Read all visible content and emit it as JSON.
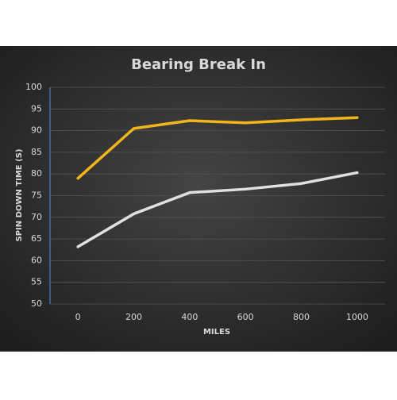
{
  "chart_data": {
    "type": "line",
    "title": "Bearing Break In",
    "x_label": "MILES",
    "y_label": "SPIN DOWN TIME (S)",
    "x": [
      0,
      200,
      400,
      600,
      800,
      1000
    ],
    "series": [
      {
        "color": "#f2b51c",
        "values": [
          79,
          90.5,
          92.3,
          91.8,
          92.5,
          93
        ]
      },
      {
        "color": "#e0e0e0",
        "values": [
          63.2,
          70.8,
          75.7,
          76.5,
          77.8,
          80.3
        ]
      }
    ],
    "xlim": [
      -100,
      1100
    ],
    "xticks": [
      0,
      200,
      400,
      600,
      800,
      1000
    ],
    "ylim": [
      50,
      100
    ],
    "yticks": [
      50,
      55,
      60,
      65,
      70,
      75,
      80,
      85,
      90,
      95,
      100
    ],
    "grid": true
  }
}
